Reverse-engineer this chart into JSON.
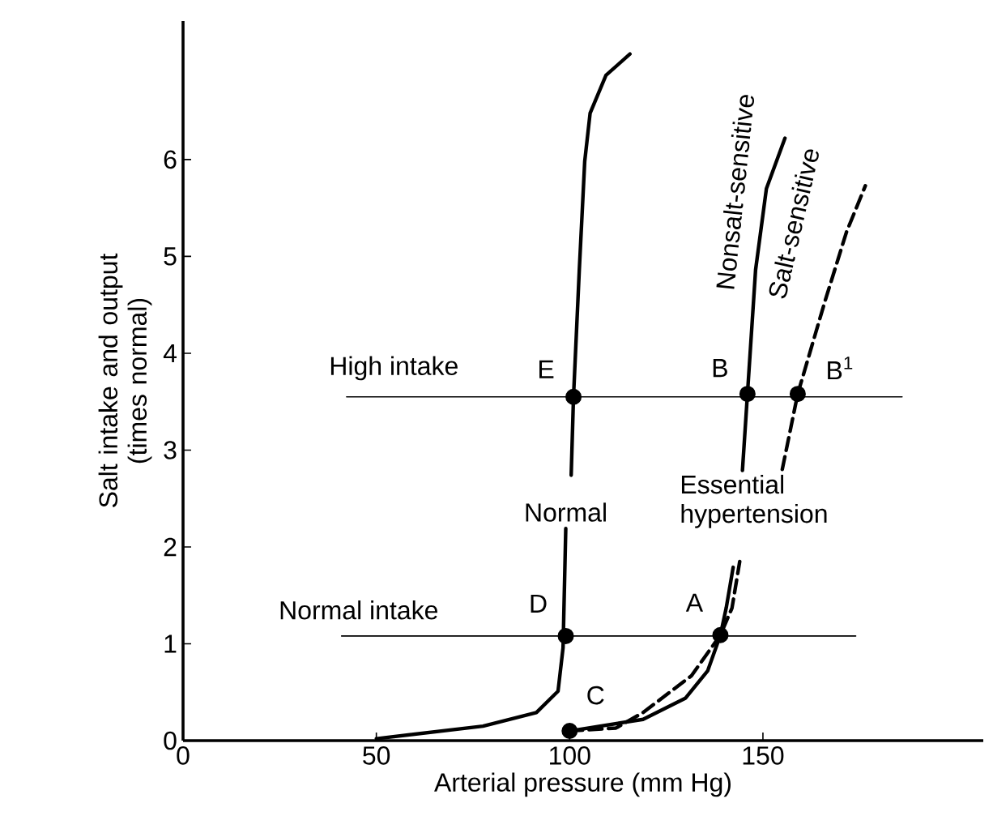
{
  "chart_data": {
    "type": "line",
    "xlabel": "Arterial pressure (mm Hg)",
    "ylabel": "Salt intake and output (times normal)",
    "xlim": [
      0,
      207
    ],
    "ylim": [
      0,
      7.43
    ],
    "xticks": [
      0,
      50,
      100,
      150
    ],
    "yticks": [
      0,
      1,
      2,
      3,
      4,
      5,
      6
    ],
    "grid": false,
    "series": [
      {
        "name": "Normal",
        "color": "#000000",
        "line_style": "solid",
        "marker": "none",
        "x": [
          50,
          77.6,
          91.4,
          97,
          98.3,
          99,
          100,
          100.4,
          101,
          102.5,
          103.9,
          105.3,
          109.4,
          115.6
        ],
        "values": [
          0.02,
          0.15,
          0.29,
          0.51,
          0.96,
          2.19,
          null,
          2.74,
          3.55,
          4.86,
          5.98,
          6.48,
          6.87,
          7.09
        ]
      },
      {
        "name": "Nonsalt-sensitive",
        "color": "#000000",
        "line_style": "solid",
        "marker": "none",
        "x": [
          100,
          119,
          130,
          135.7,
          139,
          140.5,
          142.3,
          143.5,
          144.7,
          146,
          148.1,
          150.9,
          155.7
        ],
        "values": [
          0.1,
          0.22,
          0.44,
          0.72,
          1.09,
          1.37,
          1.79,
          null,
          2.79,
          3.58,
          4.86,
          5.7,
          6.22
        ]
      },
      {
        "name": "Salt-sensitive",
        "color": "#000000",
        "line_style": "dashed",
        "marker": "none",
        "x": [
          100,
          112,
          119,
          131.5,
          139,
          142,
          144,
          150,
          155,
          159,
          166,
          171.6,
          176.5
        ],
        "values": [
          0.1,
          0.13,
          0.29,
          0.67,
          1.09,
          1.37,
          1.85,
          null,
          2.8,
          3.58,
          4.53,
          5.25,
          5.73
        ]
      },
      {
        "color": "#000000",
        "line_style": "solid",
        "marker": "none",
        "x": [
          42.3,
          186
        ],
        "values": [
          3.55,
          3.55
        ]
      },
      {
        "color": "#000000",
        "line_style": "solid",
        "marker": "none",
        "x": [
          41,
          174
        ],
        "values": [
          1.08,
          1.08
        ]
      },
      {
        "type": "scatter",
        "color": "#000000",
        "marker": "circle",
        "x": [
          101,
          146,
          159,
          99,
          139,
          100
        ],
        "values": [
          3.55,
          3.58,
          3.58,
          1.08,
          1.09,
          0.1
        ]
      }
    ],
    "annotations": [
      {
        "text": "High intake",
        "x": 42.3,
        "y": 3.55
      },
      {
        "text": "Normal intake",
        "x": 41,
        "y": 1.08
      },
      {
        "text": "E",
        "x": 101,
        "y": 3.55
      },
      {
        "text": "B",
        "x": 146,
        "y": 3.58
      },
      {
        "text": "B$^{1}$",
        "x": 159,
        "y": 3.58
      },
      {
        "text": "D",
        "x": 99,
        "y": 1.08
      },
      {
        "text": "A",
        "x": 139,
        "y": 1.09
      },
      {
        "text": "C",
        "x": 100,
        "y": 0.1
      },
      "Essential hypertension"
    ]
  }
}
